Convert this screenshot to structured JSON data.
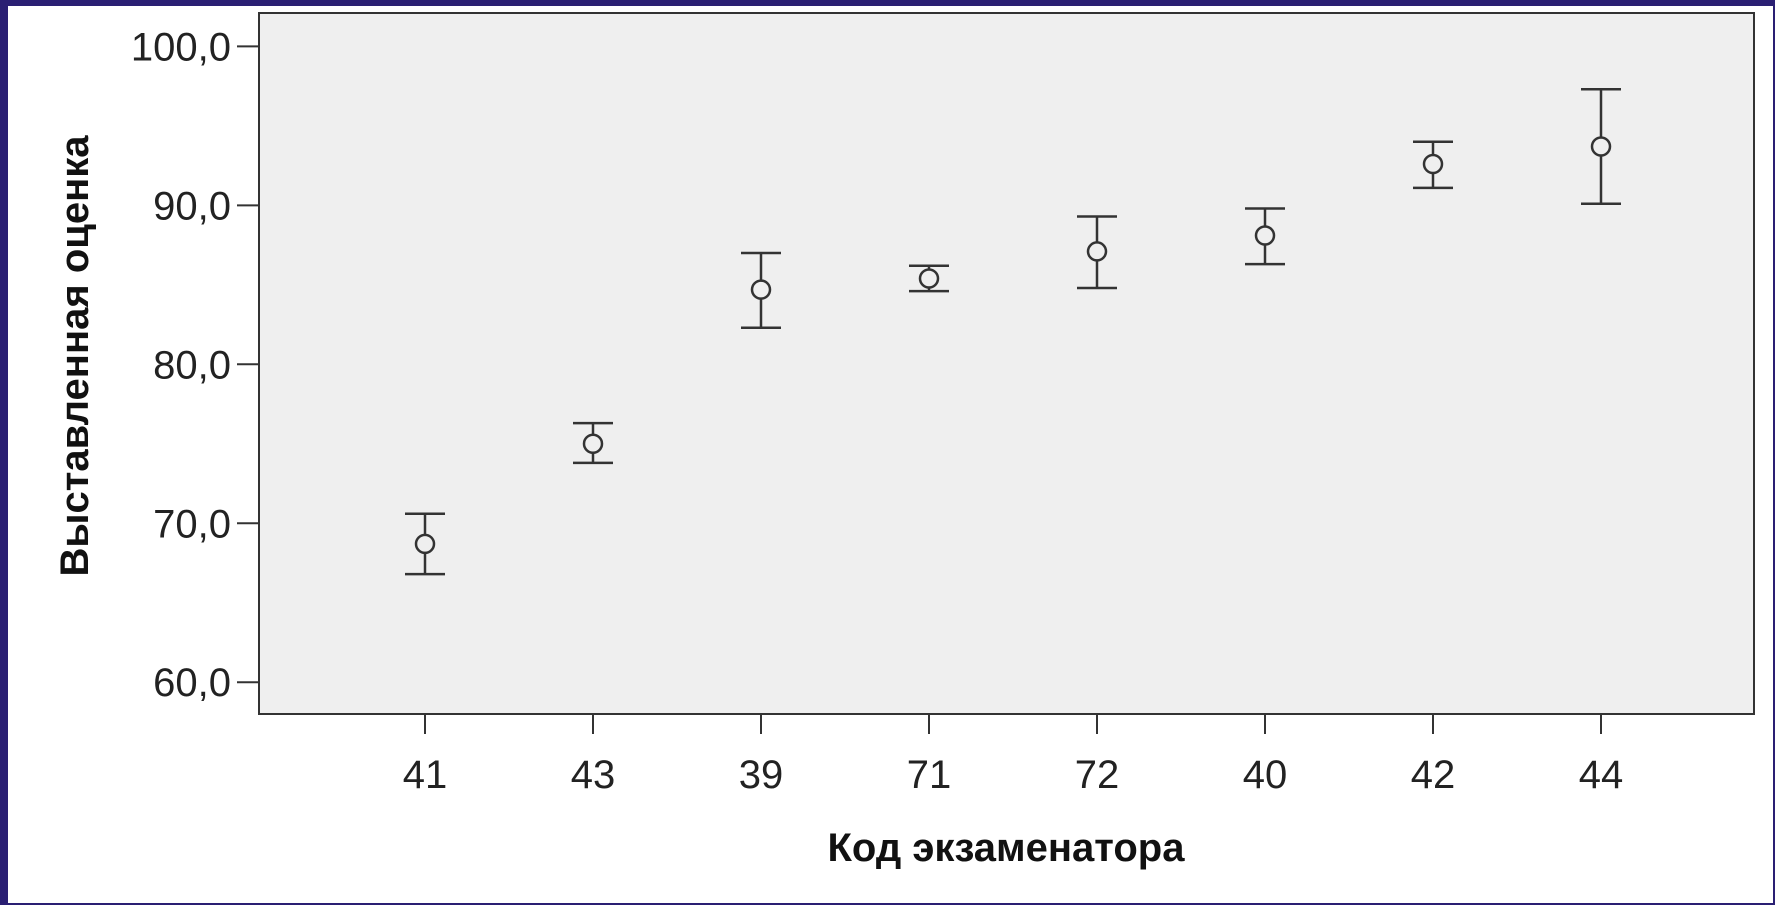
{
  "chart_data": {
    "type": "scatter",
    "subtype": "error-bar",
    "title": "",
    "xlabel": "Код экзаменатора",
    "ylabel": "Выставленная оценка",
    "categories": [
      "41",
      "43",
      "39",
      "71",
      "72",
      "40",
      "42",
      "44"
    ],
    "series": [
      {
        "means": [
          68.7,
          75.0,
          84.7,
          85.4,
          87.1,
          88.1,
          92.6,
          93.7
        ],
        "lower": [
          66.8,
          73.8,
          82.3,
          84.6,
          84.8,
          86.3,
          91.1,
          90.1
        ],
        "upper": [
          70.6,
          76.3,
          87.0,
          86.2,
          89.3,
          89.8,
          94.0,
          97.3
        ]
      }
    ],
    "ylim": [
      58.0,
      102.1
    ],
    "yticks": [
      60.0,
      70.0,
      80.0,
      90.0,
      100.0
    ],
    "ytick_labels": [
      "60,0",
      "70,0",
      "80,0",
      "90,0",
      "100,0"
    ],
    "grid": false,
    "legend": "none",
    "plot_background": "#efefef",
    "frame_color": "#2a1f73"
  }
}
